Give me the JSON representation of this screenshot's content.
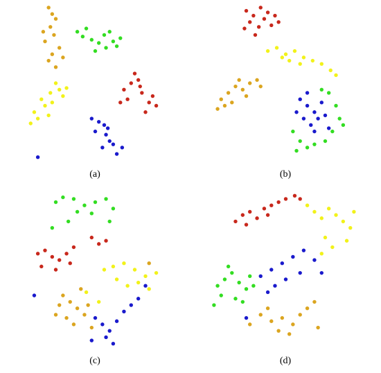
{
  "chart_data": [
    {
      "type": "scatter",
      "caption": "(a)",
      "xlim": [
        0,
        100
      ],
      "ylim": [
        0,
        100
      ],
      "series": [
        {
          "color": "#dba520",
          "x": [
            24,
            26,
            28,
            25,
            27,
            22,
            30,
            26,
            24,
            32,
            28,
            21
          ],
          "y": [
            97,
            93,
            90,
            85,
            80,
            76,
            72,
            68,
            64,
            66,
            60,
            82
          ]
        },
        {
          "color": "#33dd22",
          "x": [
            40,
            43,
            45,
            48,
            52,
            55,
            58,
            60,
            62,
            56,
            50,
            64
          ],
          "y": [
            82,
            79,
            84,
            77,
            75,
            80,
            82,
            76,
            73,
            72,
            70,
            78
          ]
        },
        {
          "color": "#f2f21a",
          "x": [
            28,
            30,
            25,
            20,
            22,
            16,
            18,
            14,
            26,
            32,
            34,
            24
          ],
          "y": [
            50,
            46,
            44,
            40,
            36,
            32,
            28,
            25,
            38,
            42,
            47,
            30
          ]
        },
        {
          "color": "#c8281c",
          "x": [
            72,
            74,
            70,
            66,
            68,
            76,
            80,
            84,
            78,
            64,
            82,
            75
          ],
          "y": [
            56,
            52,
            50,
            46,
            40,
            44,
            38,
            36,
            32,
            38,
            42,
            48
          ]
        },
        {
          "color": "#1a1acc",
          "x": [
            48,
            52,
            55,
            50,
            56,
            58,
            54,
            60,
            62,
            65,
            57,
            18
          ],
          "y": [
            28,
            26,
            24,
            20,
            18,
            14,
            10,
            12,
            6,
            10,
            22,
            4
          ]
        }
      ]
    },
    {
      "type": "scatter",
      "caption": "(b)",
      "xlim": [
        0,
        100
      ],
      "ylim": [
        0,
        100
      ],
      "series": [
        {
          "color": "#c8281c",
          "x": [
            28,
            32,
            36,
            40,
            44,
            30,
            35,
            38,
            42,
            46,
            33,
            27
          ],
          "y": [
            95,
            92,
            97,
            94,
            92,
            88,
            85,
            90,
            86,
            88,
            80,
            84
          ]
        },
        {
          "color": "#f2f21a",
          "x": [
            40,
            45,
            50,
            55,
            60,
            65,
            70,
            75,
            78,
            52,
            58,
            48
          ],
          "y": [
            70,
            72,
            68,
            70,
            66,
            64,
            62,
            58,
            55,
            64,
            62,
            66
          ]
        },
        {
          "color": "#dba520",
          "x": [
            14,
            18,
            22,
            26,
            30,
            34,
            20,
            16,
            36,
            28,
            12,
            24
          ],
          "y": [
            40,
            44,
            48,
            46,
            50,
            52,
            38,
            36,
            48,
            42,
            34,
            52
          ]
        },
        {
          "color": "#1a1acc",
          "x": [
            58,
            62,
            66,
            70,
            60,
            64,
            68,
            72,
            56,
            74,
            62,
            66
          ],
          "y": [
            40,
            36,
            32,
            38,
            28,
            24,
            28,
            30,
            32,
            22,
            44,
            20
          ]
        },
        {
          "color": "#33dd22",
          "x": [
            54,
            58,
            62,
            66,
            72,
            76,
            80,
            78,
            74,
            70,
            82,
            56
          ],
          "y": [
            20,
            14,
            10,
            12,
            14,
            20,
            28,
            36,
            44,
            46,
            24,
            8
          ]
        }
      ]
    },
    {
      "type": "scatter",
      "caption": "(c)",
      "xlim": [
        0,
        100
      ],
      "ylim": [
        0,
        100
      ],
      "series": [
        {
          "color": "#33dd22",
          "x": [
            28,
            32,
            38,
            44,
            50,
            56,
            60,
            48,
            40,
            35,
            26,
            58
          ],
          "y": [
            92,
            95,
            94,
            90,
            92,
            94,
            88,
            85,
            86,
            80,
            76,
            80
          ]
        },
        {
          "color": "#c8281c",
          "x": [
            18,
            22,
            26,
            30,
            34,
            38,
            20,
            28,
            48,
            52,
            56,
            36
          ],
          "y": [
            60,
            62,
            58,
            56,
            60,
            64,
            52,
            50,
            70,
            66,
            68,
            54
          ]
        },
        {
          "color": "#f2f21a",
          "x": [
            55,
            60,
            66,
            72,
            78,
            84,
            62,
            68,
            74,
            80,
            45,
            52
          ],
          "y": [
            50,
            52,
            54,
            50,
            46,
            48,
            44,
            40,
            42,
            38,
            36,
            30
          ]
        },
        {
          "color": "#dba520",
          "x": [
            32,
            36,
            40,
            44,
            34,
            38,
            30,
            42,
            48,
            28,
            80,
            46
          ],
          "y": [
            34,
            30,
            26,
            22,
            20,
            16,
            28,
            38,
            14,
            22,
            54,
            28
          ]
        },
        {
          "color": "#1a1acc",
          "x": [
            50,
            54,
            58,
            62,
            66,
            70,
            74,
            56,
            48,
            60,
            16,
            78
          ],
          "y": [
            20,
            16,
            12,
            18,
            24,
            28,
            32,
            8,
            6,
            4,
            34,
            40
          ]
        }
      ]
    },
    {
      "type": "scatter",
      "caption": "(d)",
      "xlim": [
        0,
        100
      ],
      "ylim": [
        0,
        100
      ],
      "series": [
        {
          "color": "#c8281c",
          "x": [
            22,
            26,
            30,
            34,
            38,
            42,
            46,
            50,
            55,
            58,
            28,
            40
          ],
          "y": [
            80,
            84,
            86,
            82,
            88,
            90,
            92,
            94,
            96,
            94,
            78,
            84
          ]
        },
        {
          "color": "#f2f21a",
          "x": [
            62,
            66,
            70,
            74,
            78,
            82,
            86,
            88,
            72,
            76,
            70,
            84
          ],
          "y": [
            90,
            86,
            82,
            88,
            84,
            80,
            76,
            86,
            70,
            64,
            60,
            68
          ]
        },
        {
          "color": "#33dd22",
          "x": [
            12,
            16,
            20,
            24,
            28,
            14,
            22,
            30,
            18,
            26,
            10,
            32
          ],
          "y": [
            40,
            44,
            48,
            42,
            38,
            34,
            32,
            46,
            52,
            30,
            28,
            40
          ]
        },
        {
          "color": "#1a1acc",
          "x": [
            36,
            42,
            48,
            54,
            60,
            50,
            44,
            40,
            58,
            66,
            28,
            70
          ],
          "y": [
            46,
            50,
            54,
            58,
            62,
            44,
            40,
            36,
            48,
            56,
            20,
            48
          ]
        },
        {
          "color": "#dba520",
          "x": [
            36,
            42,
            48,
            54,
            58,
            62,
            46,
            52,
            40,
            66,
            30,
            68
          ],
          "y": [
            22,
            18,
            20,
            16,
            22,
            26,
            12,
            10,
            26,
            30,
            16,
            14
          ]
        }
      ]
    }
  ]
}
